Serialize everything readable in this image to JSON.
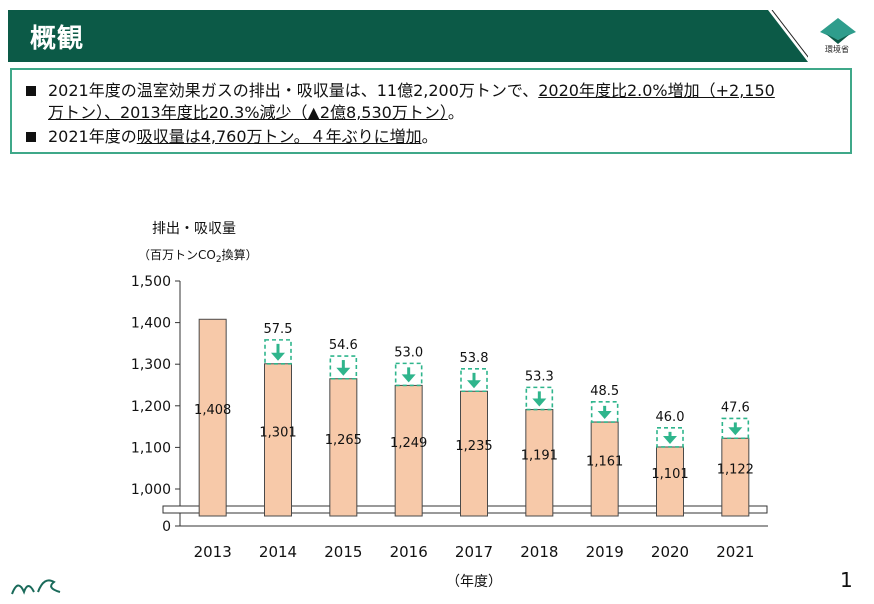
{
  "header": {
    "title": "概観",
    "ministry": "環境省",
    "page_number": "1"
  },
  "summary": {
    "bullet1_line1_plain": "2021年度の温室効果ガスの排出・吸収量は、11億2,200万トンで、",
    "bullet1_line1_underlined": "2020年度比2.0%増加（+2,150",
    "bullet1_line2_underlined": "万トン）、2013年度比20.3%減少（▲2億8,530万トン）",
    "bullet1_line2_end": "。",
    "bullet2_plain": "2021年度の",
    "bullet2_underlined": "吸収量は4,760万トン。４年ぶりに増加",
    "bullet2_end": "。"
  },
  "colors": {
    "header_green": "#0c5a47",
    "box_border": "#3fa889",
    "bar_fill": "#f7c9a9",
    "bar_stroke": "#4a4a4a",
    "arrow_green": "#2fb58c"
  },
  "chart_data": {
    "type": "bar",
    "ylabel": "排出・吸収量",
    "yunit": "（百万トンCO2換算）",
    "xlabel": "（年度）",
    "categories": [
      "2013",
      "2014",
      "2015",
      "2016",
      "2017",
      "2018",
      "2019",
      "2020",
      "2021"
    ],
    "values": [
      1408,
      1301,
      1265,
      1249,
      1235,
      1191,
      1161,
      1101,
      1122
    ],
    "value_labels": [
      "1,408",
      "1,301",
      "1,265",
      "1,249",
      "1,235",
      "1,191",
      "1,161",
      "1,101",
      "1,122"
    ],
    "absorption": [
      null,
      57.5,
      54.6,
      53.0,
      53.8,
      53.3,
      48.5,
      46.0,
      47.6
    ],
    "absorption_labels": [
      "",
      "57.5",
      "54.6",
      "53.0",
      "53.8",
      "53.3",
      "48.5",
      "46.0",
      "47.6"
    ],
    "yticks": [
      0,
      1000,
      1100,
      1200,
      1300,
      1400,
      1500
    ],
    "ytick_labels": [
      "0",
      "1,000",
      "1,100",
      "1,200",
      "1,300",
      "1,400",
      "1,500"
    ],
    "ylim": [
      1000,
      1500
    ],
    "axis_break": true,
    "grid": false
  }
}
